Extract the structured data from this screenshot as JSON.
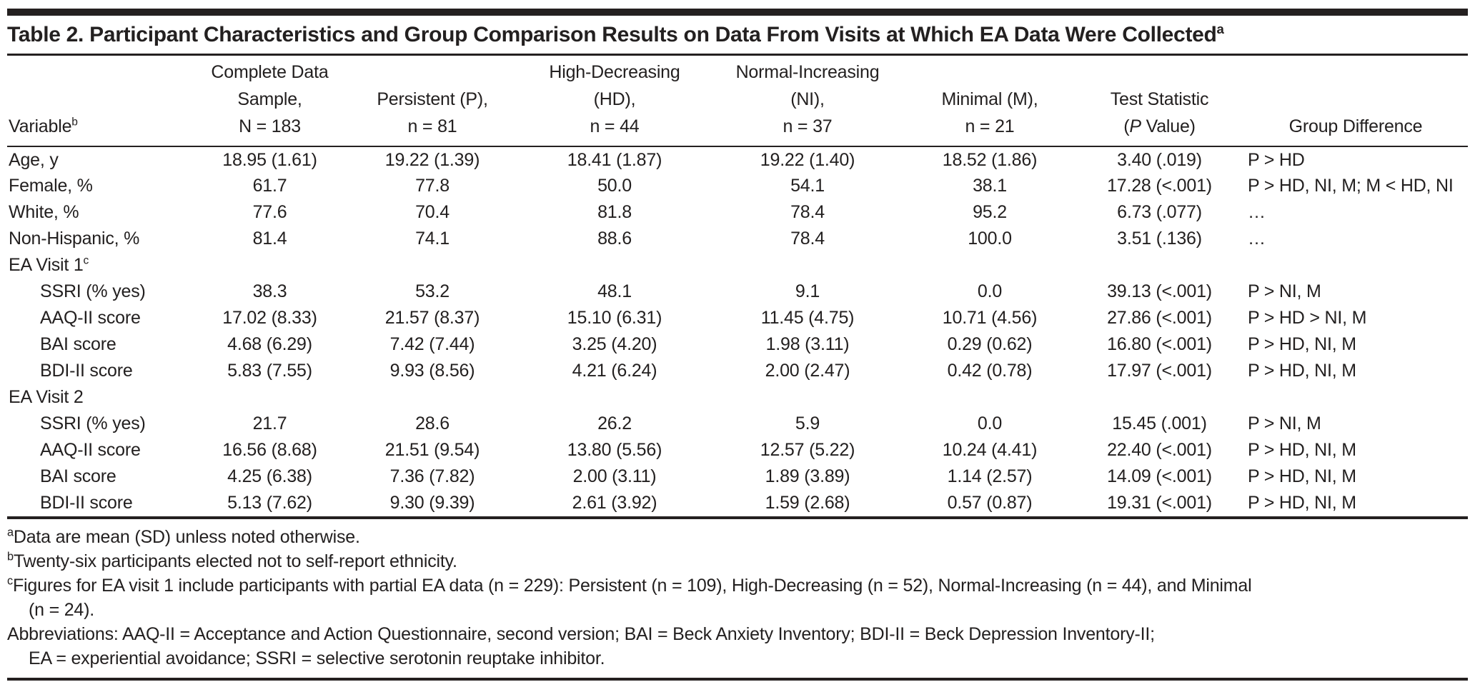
{
  "title": {
    "text": "Table 2. Participant Characteristics and Group Comparison Results on Data From Visits at Which EA Data Were Collected",
    "sup": "a"
  },
  "table": {
    "columns": [
      {
        "label": "Variable",
        "sup": "b"
      },
      {
        "lines": [
          "Complete Data",
          "Sample,",
          "N = 183"
        ]
      },
      {
        "lines": [
          "Persistent (P),",
          "n = 81"
        ]
      },
      {
        "lines": [
          "High-Decreasing",
          "(HD),",
          "n = 44"
        ]
      },
      {
        "lines": [
          "Normal-Increasing",
          "(NI),",
          "n = 37"
        ]
      },
      {
        "lines": [
          "Minimal (M),",
          "n = 21"
        ]
      },
      {
        "line1": "Test Statistic",
        "p_open": "(",
        "p_italic": "P",
        "p_rest": " Value)"
      },
      {
        "label": "Group Difference"
      }
    ],
    "rows": [
      {
        "label": "Age, y",
        "values": [
          "18.95 (1.61)",
          "19.22 (1.39)",
          "18.41 (1.87)",
          "19.22 (1.40)",
          "18.52 (1.86)",
          "3.40 (.019)",
          "P > HD"
        ]
      },
      {
        "label": "Female, %",
        "values": [
          "61.7",
          "77.8",
          "50.0",
          "54.1",
          "38.1",
          "17.28 (<.001)",
          "P > HD, NI, M; M < HD, NI"
        ]
      },
      {
        "label": "White, %",
        "values": [
          "77.6",
          "70.4",
          "81.8",
          "78.4",
          "95.2",
          "6.73 (.077)",
          "…"
        ]
      },
      {
        "label": "Non-Hispanic, %",
        "values": [
          "81.4",
          "74.1",
          "88.6",
          "78.4",
          "100.0",
          "3.51 (.136)",
          "…"
        ]
      },
      {
        "label": "EA Visit 1",
        "sup": "c",
        "section": true,
        "values": []
      },
      {
        "label": "SSRI (% yes)",
        "indent": true,
        "values": [
          "38.3",
          "53.2",
          "48.1",
          "9.1",
          "0.0",
          "39.13 (<.001)",
          "P > NI, M"
        ]
      },
      {
        "label": "AAQ-II score",
        "indent": true,
        "values": [
          "17.02 (8.33)",
          "21.57 (8.37)",
          "15.10 (6.31)",
          "11.45 (4.75)",
          "10.71 (4.56)",
          "27.86 (<.001)",
          "P > HD > NI, M"
        ]
      },
      {
        "label": "BAI score",
        "indent": true,
        "values": [
          "4.68 (6.29)",
          "7.42 (7.44)",
          "3.25 (4.20)",
          "1.98 (3.11)",
          "0.29 (0.62)",
          "16.80 (<.001)",
          "P > HD, NI, M"
        ]
      },
      {
        "label": "BDI-II score",
        "indent": true,
        "values": [
          "5.83 (7.55)",
          "9.93 (8.56)",
          "4.21 (6.24)",
          "2.00 (2.47)",
          "0.42 (0.78)",
          "17.97 (<.001)",
          "P > HD, NI, M"
        ]
      },
      {
        "label": "EA Visit 2",
        "section": true,
        "values": []
      },
      {
        "label": "SSRI (% yes)",
        "indent": true,
        "values": [
          "21.7",
          "28.6",
          "26.2",
          "5.9",
          "0.0",
          "15.45 (.001)",
          "P > NI, M"
        ]
      },
      {
        "label": "AAQ-II score",
        "indent": true,
        "values": [
          "16.56 (8.68)",
          "21.51 (9.54)",
          "13.80 (5.56)",
          "12.57 (5.22)",
          "10.24 (4.41)",
          "22.40 (<.001)",
          "P > HD, NI, M"
        ]
      },
      {
        "label": "BAI score",
        "indent": true,
        "values": [
          "4.25 (6.38)",
          "7.36 (7.82)",
          "2.00 (3.11)",
          "1.89 (3.89)",
          "1.14 (2.57)",
          "14.09 (<.001)",
          "P > HD, NI, M"
        ]
      },
      {
        "label": "BDI-II score",
        "indent": true,
        "values": [
          "5.13 (7.62)",
          "9.30 (9.39)",
          "2.61 (3.92)",
          "1.59 (2.68)",
          "0.57 (0.87)",
          "19.31 (<.001)",
          "P > HD, NI, M"
        ]
      }
    ]
  },
  "footnotes": [
    {
      "sup": "a",
      "lines": [
        "Data are mean (SD) unless noted otherwise."
      ]
    },
    {
      "sup": "b",
      "lines": [
        "Twenty-six participants elected not to self-report ethnicity."
      ]
    },
    {
      "sup": "c",
      "lines": [
        "Figures for EA visit 1 include participants with partial EA data (n = 229): Persistent (n = 109), High-Decreasing (n = 52), Normal-Increasing (n = 44), and Minimal",
        "(n = 24)."
      ]
    },
    {
      "sup": "",
      "lines": [
        "Abbreviations: AAQ-II = Acceptance and Action Questionnaire, second version; BAI = Beck Anxiety Inventory; BDI-II = Beck Depression Inventory-II;",
        "EA = experiential avoidance; SSRI = selective serotonin reuptake inhibitor."
      ]
    }
  ],
  "colors": {
    "text": "#232020",
    "rule": "#242020",
    "top_bar": "#242020",
    "background": "#ffffff"
  }
}
